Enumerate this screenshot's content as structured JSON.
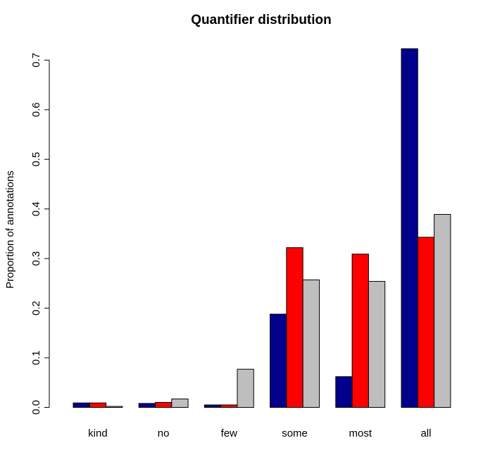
{
  "chart_data": {
    "type": "bar",
    "title": "Quantifier distribution",
    "xlabel": "",
    "ylabel": "Proportion of annotations",
    "categories": [
      "kind",
      "no",
      "few",
      "some",
      "most",
      "all"
    ],
    "series": [
      {
        "color": "#00008B",
        "values": [
          0.009,
          0.008,
          0.005,
          0.188,
          0.062,
          0.723
        ]
      },
      {
        "color": "#FF0000",
        "values": [
          0.009,
          0.01,
          0.005,
          0.322,
          0.309,
          0.343
        ]
      },
      {
        "color": "#BEBEBE",
        "values": [
          0.002,
          0.017,
          0.077,
          0.257,
          0.254,
          0.389
        ]
      }
    ],
    "yticks": [
      "0.0",
      "0.1",
      "0.2",
      "0.3",
      "0.4",
      "0.5",
      "0.6",
      "0.7"
    ],
    "ylim": [
      0,
      0.7
    ],
    "grid": false,
    "legend": "none"
  }
}
